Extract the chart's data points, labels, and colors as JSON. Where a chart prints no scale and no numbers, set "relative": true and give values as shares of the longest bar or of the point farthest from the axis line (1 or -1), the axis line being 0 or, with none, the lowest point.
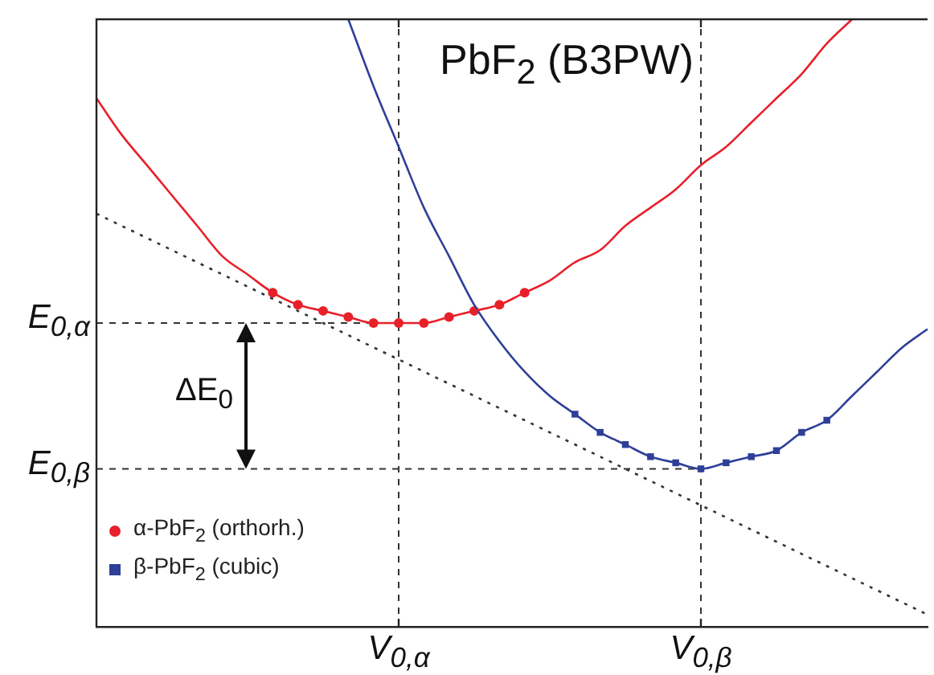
{
  "chart_data": {
    "type": "line",
    "title": "PbF$_{2}$ (B3PW)",
    "relative": true,
    "grid": false,
    "legend": "bottom left",
    "annotations": [
      "ΔE$_{0}$"
    ],
    "categories": [
      null,
      null,
      null,
      null,
      null,
      null,
      null,
      null,
      null,
      null,
      null,
      null,
      "V$_{0,α}$",
      null,
      null,
      null,
      null,
      null,
      null,
      null,
      null,
      null,
      null,
      null,
      "V$_{0,β}$",
      null,
      null,
      null,
      null,
      null,
      null,
      null,
      null,
      null
    ],
    "ref_lines": [
      {
        "axis": "y",
        "value": 0.5,
        "label": "E$_{0,α}$",
        "line_style": "dashed",
        "color": "#333333"
      },
      {
        "axis": "y",
        "value": 0.26,
        "label": "E$_{0,β}$",
        "line_style": "dashed",
        "color": "#333333"
      },
      {
        "axis": "x",
        "value": "V$_{0,α}$",
        "line_style": "dashed",
        "color": "#333333"
      },
      {
        "axis": "x",
        "value": "V$_{0,β}$",
        "line_style": "dashed",
        "color": "#333333"
      }
    ],
    "series": [
      {
        "color": "#e8202a",
        "marker": "none",
        "values": [
          0.87,
          0.81,
          0.76,
          0.71,
          0.66,
          0.61,
          0.58,
          0.55,
          0.53,
          0.52,
          0.51,
          0.5,
          0.5,
          0.5,
          0.51,
          0.52,
          0.53,
          0.55,
          0.57,
          0.6,
          0.62,
          0.66,
          0.69,
          0.72,
          0.76,
          0.79,
          0.83,
          0.87,
          0.91,
          0.96,
          1,
          null,
          null,
          null
        ]
      },
      {
        "color": "#2e3f98",
        "marker": "none",
        "values": [
          null,
          null,
          null,
          null,
          null,
          null,
          null,
          null,
          null,
          null,
          1,
          0.89,
          0.79,
          0.69,
          0.61,
          0.53,
          0.47,
          0.42,
          0.38,
          0.35,
          0.32,
          0.3,
          0.28,
          0.27,
          0.26,
          0.27,
          0.28,
          0.29,
          0.32,
          0.34,
          0.38,
          0.42,
          0.46,
          0.49
        ]
      },
      {
        "type": "scatter",
        "name": "α-PbF$_{2}$ (orthorh.)",
        "color": "#e8202a",
        "marker": "circle",
        "values": [
          null,
          null,
          null,
          null,
          null,
          null,
          null,
          0.55,
          0.53,
          0.52,
          0.51,
          0.5,
          0.5,
          0.5,
          0.51,
          0.52,
          0.53,
          0.55,
          null,
          null,
          null,
          null,
          null,
          null,
          null,
          null,
          null,
          null,
          null,
          null,
          null,
          null,
          null,
          null
        ]
      },
      {
        "type": "scatter",
        "name": "β-PbF$_{2}$ (cubic)",
        "color": "#2e3f98",
        "marker": "square",
        "values": [
          null,
          null,
          null,
          null,
          null,
          null,
          null,
          null,
          null,
          null,
          null,
          null,
          null,
          null,
          null,
          null,
          null,
          null,
          null,
          0.35,
          0.32,
          0.3,
          0.28,
          0.27,
          0.26,
          0.27,
          0.28,
          0.29,
          0.32,
          0.34,
          null,
          null,
          null,
          null
        ]
      },
      {
        "color": "#333333",
        "marker": "none",
        "line_style": "dotted",
        "values": [
          0.68,
          null,
          null,
          null,
          null,
          null,
          null,
          null,
          null,
          null,
          null,
          null,
          null,
          null,
          null,
          null,
          null,
          null,
          null,
          null,
          null,
          null,
          null,
          null,
          null,
          null,
          null,
          null,
          null,
          null,
          null,
          null,
          null,
          0.02
        ]
      }
    ]
  }
}
